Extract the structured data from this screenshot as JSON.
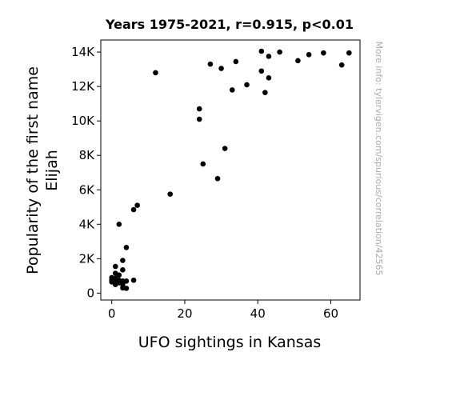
{
  "chart_data": {
    "type": "scatter",
    "title": "Years 1975-2021, r=0.915, p<0.01",
    "xlabel": "UFO sightings in Kansas",
    "ylabel_lines": [
      "Popularity of the first name",
      "Elijah"
    ],
    "watermark": "More info: tylervigen.com/spurious/correlation/42565",
    "xlim": [
      -3,
      68
    ],
    "ylim": [
      -400,
      14700
    ],
    "x_ticks": [
      {
        "value": 0,
        "label": "0"
      },
      {
        "value": 20,
        "label": "20"
      },
      {
        "value": 40,
        "label": "40"
      },
      {
        "value": 60,
        "label": "60"
      }
    ],
    "y_ticks": [
      {
        "value": 0,
        "label": "0"
      },
      {
        "value": 2000,
        "label": "2K"
      },
      {
        "value": 4000,
        "label": "4K"
      },
      {
        "value": 6000,
        "label": "6K"
      },
      {
        "value": 8000,
        "label": "8K"
      },
      {
        "value": 10000,
        "label": "10K"
      },
      {
        "value": 12000,
        "label": "12K"
      },
      {
        "value": 14000,
        "label": "14K"
      }
    ],
    "marker_color": "#000000",
    "points": [
      {
        "x": 0,
        "y": 650
      },
      {
        "x": 0,
        "y": 900
      },
      {
        "x": 0,
        "y": 750
      },
      {
        "x": 1,
        "y": 1550
      },
      {
        "x": 1,
        "y": 1150
      },
      {
        "x": 1,
        "y": 500
      },
      {
        "x": 1,
        "y": 850
      },
      {
        "x": 1,
        "y": 650
      },
      {
        "x": 2,
        "y": 1050
      },
      {
        "x": 2,
        "y": 750
      },
      {
        "x": 2,
        "y": 600
      },
      {
        "x": 2,
        "y": 4000
      },
      {
        "x": 3,
        "y": 1900
      },
      {
        "x": 3,
        "y": 1350
      },
      {
        "x": 3,
        "y": 700
      },
      {
        "x": 3,
        "y": 500
      },
      {
        "x": 3,
        "y": 300
      },
      {
        "x": 4,
        "y": 2650
      },
      {
        "x": 4,
        "y": 700
      },
      {
        "x": 4,
        "y": 280
      },
      {
        "x": 6,
        "y": 750
      },
      {
        "x": 6,
        "y": 4850
      },
      {
        "x": 7,
        "y": 5100
      },
      {
        "x": 12,
        "y": 12800
      },
      {
        "x": 16,
        "y": 5750
      },
      {
        "x": 24,
        "y": 10700
      },
      {
        "x": 24,
        "y": 10100
      },
      {
        "x": 25,
        "y": 7500
      },
      {
        "x": 27,
        "y": 13300
      },
      {
        "x": 29,
        "y": 6650
      },
      {
        "x": 30,
        "y": 13050
      },
      {
        "x": 31,
        "y": 8400
      },
      {
        "x": 33,
        "y": 11800
      },
      {
        "x": 34,
        "y": 13450
      },
      {
        "x": 37,
        "y": 12100
      },
      {
        "x": 41,
        "y": 14050
      },
      {
        "x": 41,
        "y": 12900
      },
      {
        "x": 42,
        "y": 11650
      },
      {
        "x": 43,
        "y": 13750
      },
      {
        "x": 43,
        "y": 12500
      },
      {
        "x": 46,
        "y": 14000
      },
      {
        "x": 51,
        "y": 13500
      },
      {
        "x": 54,
        "y": 13850
      },
      {
        "x": 58,
        "y": 13950
      },
      {
        "x": 63,
        "y": 13250
      },
      {
        "x": 65,
        "y": 13950
      }
    ]
  }
}
